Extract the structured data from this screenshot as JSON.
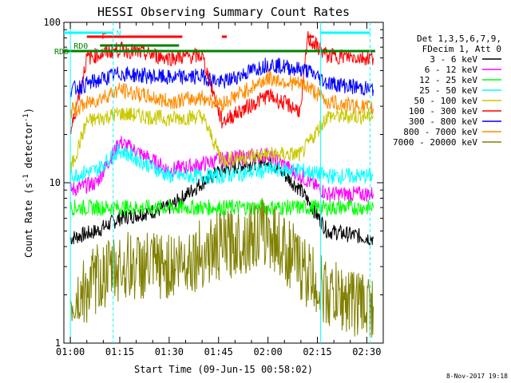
{
  "chart_data": {
    "type": "line",
    "title": "HESSI Observing Summary Count Rates",
    "xlabel": "Start Time (09-Jun-15 00:58:02)",
    "ylabel": "Count Rate (s",
    "ylabel_sup": "-1",
    "ylabel_tail": " detector",
    "ylabel_close": ")",
    "yscale": "log",
    "ylim": [
      1,
      100
    ],
    "xlim": [
      "00:58:02",
      "02:35:00"
    ],
    "x_ticks": [
      "01:00",
      "01:15",
      "01:30",
      "01:45",
      "02:00",
      "02:15",
      "02:30"
    ],
    "y_ticks": [
      "1",
      "10",
      "100"
    ],
    "legend_header": [
      "Det 1,3,5,6,7,9,",
      "FDecim 1, Att 0"
    ],
    "flags": [
      {
        "label": "N",
        "color": "#00ffff"
      },
      {
        "label": "F",
        "color": "#ff0000"
      },
      {
        "label": "RD0",
        "color": "#008000"
      },
      {
        "label": "RD6",
        "color": "#008000"
      }
    ],
    "series": [
      {
        "name": "3 - 6 keV",
        "color": "#000000",
        "values": [
          {
            "x": "01:00",
            "y": 4.5
          },
          {
            "x": "01:08",
            "y": 5
          },
          {
            "x": "01:15",
            "y": 6
          },
          {
            "x": "01:30",
            "y": 7
          },
          {
            "x": "01:40",
            "y": 10
          },
          {
            "x": "01:46",
            "y": 12
          },
          {
            "x": "02:00",
            "y": 14
          },
          {
            "x": "02:10",
            "y": 9
          },
          {
            "x": "02:18",
            "y": 5
          },
          {
            "x": "02:32",
            "y": 4.5
          }
        ]
      },
      {
        "name": "6 - 12 keV",
        "color": "#ff00ff",
        "values": [
          {
            "x": "01:00",
            "y": 9
          },
          {
            "x": "01:08",
            "y": 10
          },
          {
            "x": "01:15",
            "y": 18
          },
          {
            "x": "01:30",
            "y": 12
          },
          {
            "x": "01:40",
            "y": 13
          },
          {
            "x": "01:46",
            "y": 14
          },
          {
            "x": "02:00",
            "y": 15
          },
          {
            "x": "02:10",
            "y": 11
          },
          {
            "x": "02:18",
            "y": 8.5
          },
          {
            "x": "02:32",
            "y": 8.5
          }
        ]
      },
      {
        "name": "12 - 25 keV",
        "color": "#00ff00",
        "values": [
          {
            "x": "01:00",
            "y": 7
          },
          {
            "x": "01:08",
            "y": 7
          },
          {
            "x": "01:15",
            "y": 7
          },
          {
            "x": "01:30",
            "y": 7
          },
          {
            "x": "01:46",
            "y": 7
          },
          {
            "x": "02:00",
            "y": 7
          },
          {
            "x": "02:18",
            "y": 7
          },
          {
            "x": "02:32",
            "y": 7
          }
        ]
      },
      {
        "name": "25 - 50 keV",
        "color": "#00ffff",
        "values": [
          {
            "x": "01:00",
            "y": 11
          },
          {
            "x": "01:08",
            "y": 12
          },
          {
            "x": "01:15",
            "y": 16
          },
          {
            "x": "01:30",
            "y": 11
          },
          {
            "x": "01:46",
            "y": 11
          },
          {
            "x": "02:00",
            "y": 12
          },
          {
            "x": "02:10",
            "y": 12
          },
          {
            "x": "02:18",
            "y": 11
          },
          {
            "x": "02:32",
            "y": 11
          }
        ]
      },
      {
        "name": "50 - 100 keV",
        "color": "#c8c800",
        "values": [
          {
            "x": "01:00",
            "y": 12
          },
          {
            "x": "01:05",
            "y": 24
          },
          {
            "x": "01:15",
            "y": 27
          },
          {
            "x": "01:30",
            "y": 25
          },
          {
            "x": "01:40",
            "y": 26
          },
          {
            "x": "01:46",
            "y": 14
          },
          {
            "x": "02:00",
            "y": 15
          },
          {
            "x": "02:10",
            "y": 15
          },
          {
            "x": "02:18",
            "y": 26
          },
          {
            "x": "02:32",
            "y": 26
          }
        ]
      },
      {
        "name": "100 - 300 keV",
        "color": "#ff0000",
        "values": [
          {
            "x": "01:00",
            "y": 20
          },
          {
            "x": "01:05",
            "y": 60
          },
          {
            "x": "01:15",
            "y": 68
          },
          {
            "x": "01:30",
            "y": 60
          },
          {
            "x": "01:40",
            "y": 62
          },
          {
            "x": "01:46",
            "y": 24
          },
          {
            "x": "02:00",
            "y": 35
          },
          {
            "x": "02:10",
            "y": 28
          },
          {
            "x": "02:12",
            "y": 80
          },
          {
            "x": "02:18",
            "y": 62
          },
          {
            "x": "02:32",
            "y": 60
          }
        ]
      },
      {
        "name": "300 - 800 keV",
        "color": "#0000ff",
        "values": [
          {
            "x": "01:00",
            "y": 38
          },
          {
            "x": "01:15",
            "y": 48
          },
          {
            "x": "01:30",
            "y": 45
          },
          {
            "x": "01:40",
            "y": 46
          },
          {
            "x": "01:46",
            "y": 42
          },
          {
            "x": "02:00",
            "y": 55
          },
          {
            "x": "02:12",
            "y": 50
          },
          {
            "x": "02:18",
            "y": 42
          },
          {
            "x": "02:32",
            "y": 38
          }
        ]
      },
      {
        "name": "800 - 7000 keV",
        "color": "#ff8c00",
        "values": [
          {
            "x": "01:00",
            "y": 28
          },
          {
            "x": "01:15",
            "y": 38
          },
          {
            "x": "01:30",
            "y": 32
          },
          {
            "x": "01:40",
            "y": 34
          },
          {
            "x": "01:46",
            "y": 31
          },
          {
            "x": "02:00",
            "y": 45
          },
          {
            "x": "02:12",
            "y": 40
          },
          {
            "x": "02:18",
            "y": 32
          },
          {
            "x": "02:32",
            "y": 29
          }
        ]
      },
      {
        "name": "7000 - 20000 keV",
        "color": "#808000",
        "values": [
          {
            "x": "01:00",
            "y": 1.7
          },
          {
            "x": "01:08",
            "y": 2.5
          },
          {
            "x": "01:15",
            "y": 3
          },
          {
            "x": "01:30",
            "y": 3
          },
          {
            "x": "01:46",
            "y": 4
          },
          {
            "x": "02:00",
            "y": 5
          },
          {
            "x": "02:10",
            "y": 3
          },
          {
            "x": "02:18",
            "y": 2
          },
          {
            "x": "02:32",
            "y": 1.7
          }
        ]
      }
    ]
  },
  "footer": {
    "date": "8-Nov-2017 19:18"
  }
}
